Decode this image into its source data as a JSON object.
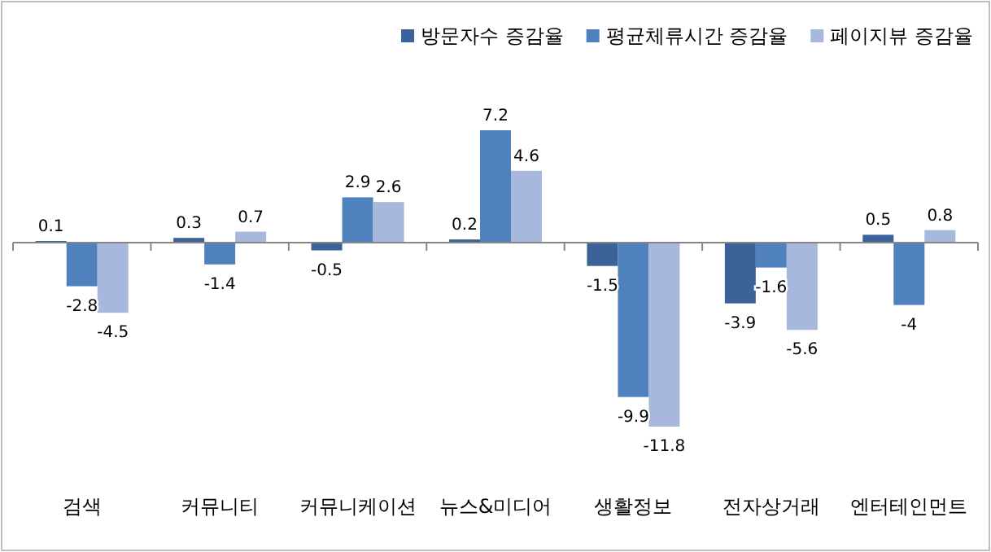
{
  "chart_data": {
    "type": "bar",
    "categories": [
      "검색",
      "커뮤니티",
      "커뮤니케이션",
      "뉴스&미디어",
      "생활정보",
      "전자상거래",
      "엔터테인먼트"
    ],
    "series": [
      {
        "name": "방문자수 증감율",
        "color": "#3c6399",
        "values": [
          0.1,
          0.3,
          -0.5,
          0.2,
          -1.5,
          -3.9,
          0.5
        ]
      },
      {
        "name": "평균체류시간 증감율",
        "color": "#4f81bd",
        "values": [
          -2.8,
          -1.4,
          2.9,
          7.2,
          -9.9,
          -1.6,
          -4
        ]
      },
      {
        "name": "페이지뷰 증감율",
        "color": "#a8b8dc",
        "values": [
          -4.5,
          0.7,
          2.6,
          4.6,
          -11.8,
          -5.6,
          0.8
        ]
      }
    ],
    "data_labels": true,
    "legend": "top right"
  }
}
